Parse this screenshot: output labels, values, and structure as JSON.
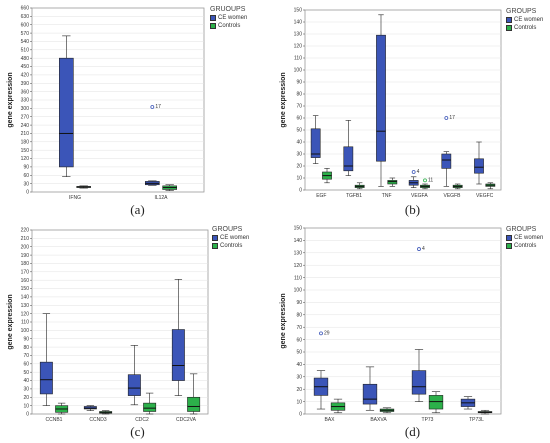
{
  "colors": {
    "ce": "#3b55b8",
    "ctrl": "#2cb04a",
    "frame": "#9a9a9a",
    "grid": "#e2e2e2",
    "axis": "#444444"
  },
  "chart_data": [
    {
      "id": "a",
      "label": "(a)",
      "type": "box",
      "ylabel": "gene expression",
      "ylim": [
        0,
        660
      ],
      "ytick": 30,
      "legend_title": "GRUOUPS",
      "legend": [
        "CE women",
        "Controls"
      ],
      "categories": [
        "IFNG",
        "IL12A"
      ],
      "series": [
        {
          "name": "CE women",
          "boxes": [
            {
              "min": 55,
              "q1": 90,
              "median": 210,
              "q3": 480,
              "max": 560
            },
            {
              "min": 24,
              "q1": 26,
              "median": 31,
              "q3": 38,
              "max": 40
            }
          ]
        },
        {
          "name": "Controls",
          "boxes": [
            {
              "min": 14,
              "q1": 16,
              "median": 18,
              "q3": 20,
              "max": 22
            },
            {
              "min": 5,
              "q1": 9,
              "median": 16,
              "q3": 22,
              "max": 26
            }
          ]
        }
      ],
      "outliers": [
        {
          "category": "IL12A",
          "series": "CE women",
          "value": 305,
          "label": "17"
        }
      ]
    },
    {
      "id": "b",
      "label": "(b)",
      "type": "box",
      "ylabel": "gene expression",
      "ylim": [
        0,
        150
      ],
      "ytick": 10,
      "legend_title": "GROUPS",
      "legend": [
        "CE women",
        "Controls"
      ],
      "categories": [
        "EGF",
        "TGFB1",
        "TNF",
        "VEGFA",
        "VEGFB",
        "VEGFC"
      ],
      "series": [
        {
          "name": "CE women",
          "boxes": [
            {
              "min": 22,
              "q1": 27,
              "median": 30,
              "q3": 51,
              "max": 62
            },
            {
              "min": 12,
              "q1": 16,
              "median": 20,
              "q3": 36,
              "max": 58
            },
            {
              "min": 3,
              "q1": 24,
              "median": 49,
              "q3": 129,
              "max": 146
            },
            {
              "min": 2,
              "q1": 4,
              "median": 6,
              "q3": 8,
              "max": 11
            },
            {
              "min": 3,
              "q1": 18,
              "median": 25,
              "q3": 30,
              "max": 32
            },
            {
              "min": 5,
              "q1": 14,
              "median": 19,
              "q3": 26,
              "max": 40
            }
          ]
        },
        {
          "name": "Controls",
          "boxes": [
            {
              "min": 6,
              "q1": 9,
              "median": 12,
              "q3": 15,
              "max": 18
            },
            {
              "min": 1,
              "q1": 2,
              "median": 3,
              "q3": 4,
              "max": 6
            },
            {
              "min": 3,
              "q1": 5,
              "median": 7,
              "q3": 8,
              "max": 10
            },
            {
              "min": 1,
              "q1": 2,
              "median": 3,
              "q3": 4,
              "max": 5
            },
            {
              "min": 1,
              "q1": 2,
              "median": 3,
              "q3": 4,
              "max": 5
            },
            {
              "min": 1,
              "q1": 3,
              "median": 4,
              "q3": 5,
              "max": 6
            }
          ]
        }
      ],
      "outliers": [
        {
          "category": "VEGFA",
          "series": "CE women",
          "value": 15,
          "label": "4"
        },
        {
          "category": "VEGFA",
          "series": "Controls",
          "value": 8,
          "label": "11"
        },
        {
          "category": "VEGFB",
          "series": "CE women",
          "value": 60,
          "label": "17"
        }
      ]
    },
    {
      "id": "c",
      "label": "(c)",
      "type": "box",
      "ylabel": "gene expression",
      "ylim": [
        0,
        220
      ],
      "ytick": 10,
      "legend_title": "GROUPS",
      "legend": [
        "CE women",
        "Controls"
      ],
      "categories": [
        "CCNB1",
        "CCND3",
        "CDC2",
        "CDC2VA"
      ],
      "series": [
        {
          "name": "CE women",
          "boxes": [
            {
              "min": 10,
              "q1": 24,
              "median": 41,
              "q3": 62,
              "max": 120
            },
            {
              "min": 4,
              "q1": 6,
              "median": 7,
              "q3": 9,
              "max": 10
            },
            {
              "min": 11,
              "q1": 22,
              "median": 31,
              "q3": 47,
              "max": 82
            },
            {
              "min": 22,
              "q1": 40,
              "median": 58,
              "q3": 101,
              "max": 161
            }
          ]
        },
        {
          "name": "Controls",
          "boxes": [
            {
              "min": 0,
              "q1": 2,
              "median": 6,
              "q3": 10,
              "max": 13
            },
            {
              "min": 0,
              "q1": 1,
              "median": 2,
              "q3": 3,
              "max": 4
            },
            {
              "min": 0,
              "q1": 3,
              "median": 7,
              "q3": 13,
              "max": 25
            },
            {
              "min": 0,
              "q1": 3,
              "median": 9,
              "q3": 20,
              "max": 48
            }
          ]
        }
      ],
      "outliers": []
    },
    {
      "id": "d",
      "label": "(d)",
      "type": "box",
      "ylabel": "gene expression",
      "ylim": [
        0,
        150
      ],
      "ytick": 10,
      "legend_title": "GROUPS",
      "legend": [
        "CE women",
        "Controls"
      ],
      "categories": [
        "BAX",
        "BAXVA",
        "TP73",
        "TP73L"
      ],
      "series": [
        {
          "name": "CE women",
          "boxes": [
            {
              "min": 4,
              "q1": 15,
              "median": 22,
              "q3": 29,
              "max": 35
            },
            {
              "min": 3,
              "q1": 8,
              "median": 12,
              "q3": 24,
              "max": 38
            },
            {
              "min": 10,
              "q1": 16,
              "median": 22,
              "q3": 35,
              "max": 52
            },
            {
              "min": 4,
              "q1": 6,
              "median": 9,
              "q3": 12,
              "max": 14
            }
          ]
        },
        {
          "name": "Controls",
          "boxes": [
            {
              "min": 1,
              "q1": 3,
              "median": 6,
              "q3": 9,
              "max": 12
            },
            {
              "min": 1,
              "q1": 2,
              "median": 3,
              "q3": 4,
              "max": 5
            },
            {
              "min": 1,
              "q1": 4,
              "median": 10,
              "q3": 15,
              "max": 18
            },
            {
              "min": 0,
              "q1": 1,
              "median": 1.5,
              "q3": 2,
              "max": 3
            }
          ]
        }
      ],
      "outliers": [
        {
          "category": "BAX",
          "series": "CE women",
          "value": 65,
          "label": "29"
        },
        {
          "category": "TP73",
          "series": "CE women",
          "value": 133,
          "label": "4"
        }
      ]
    }
  ]
}
